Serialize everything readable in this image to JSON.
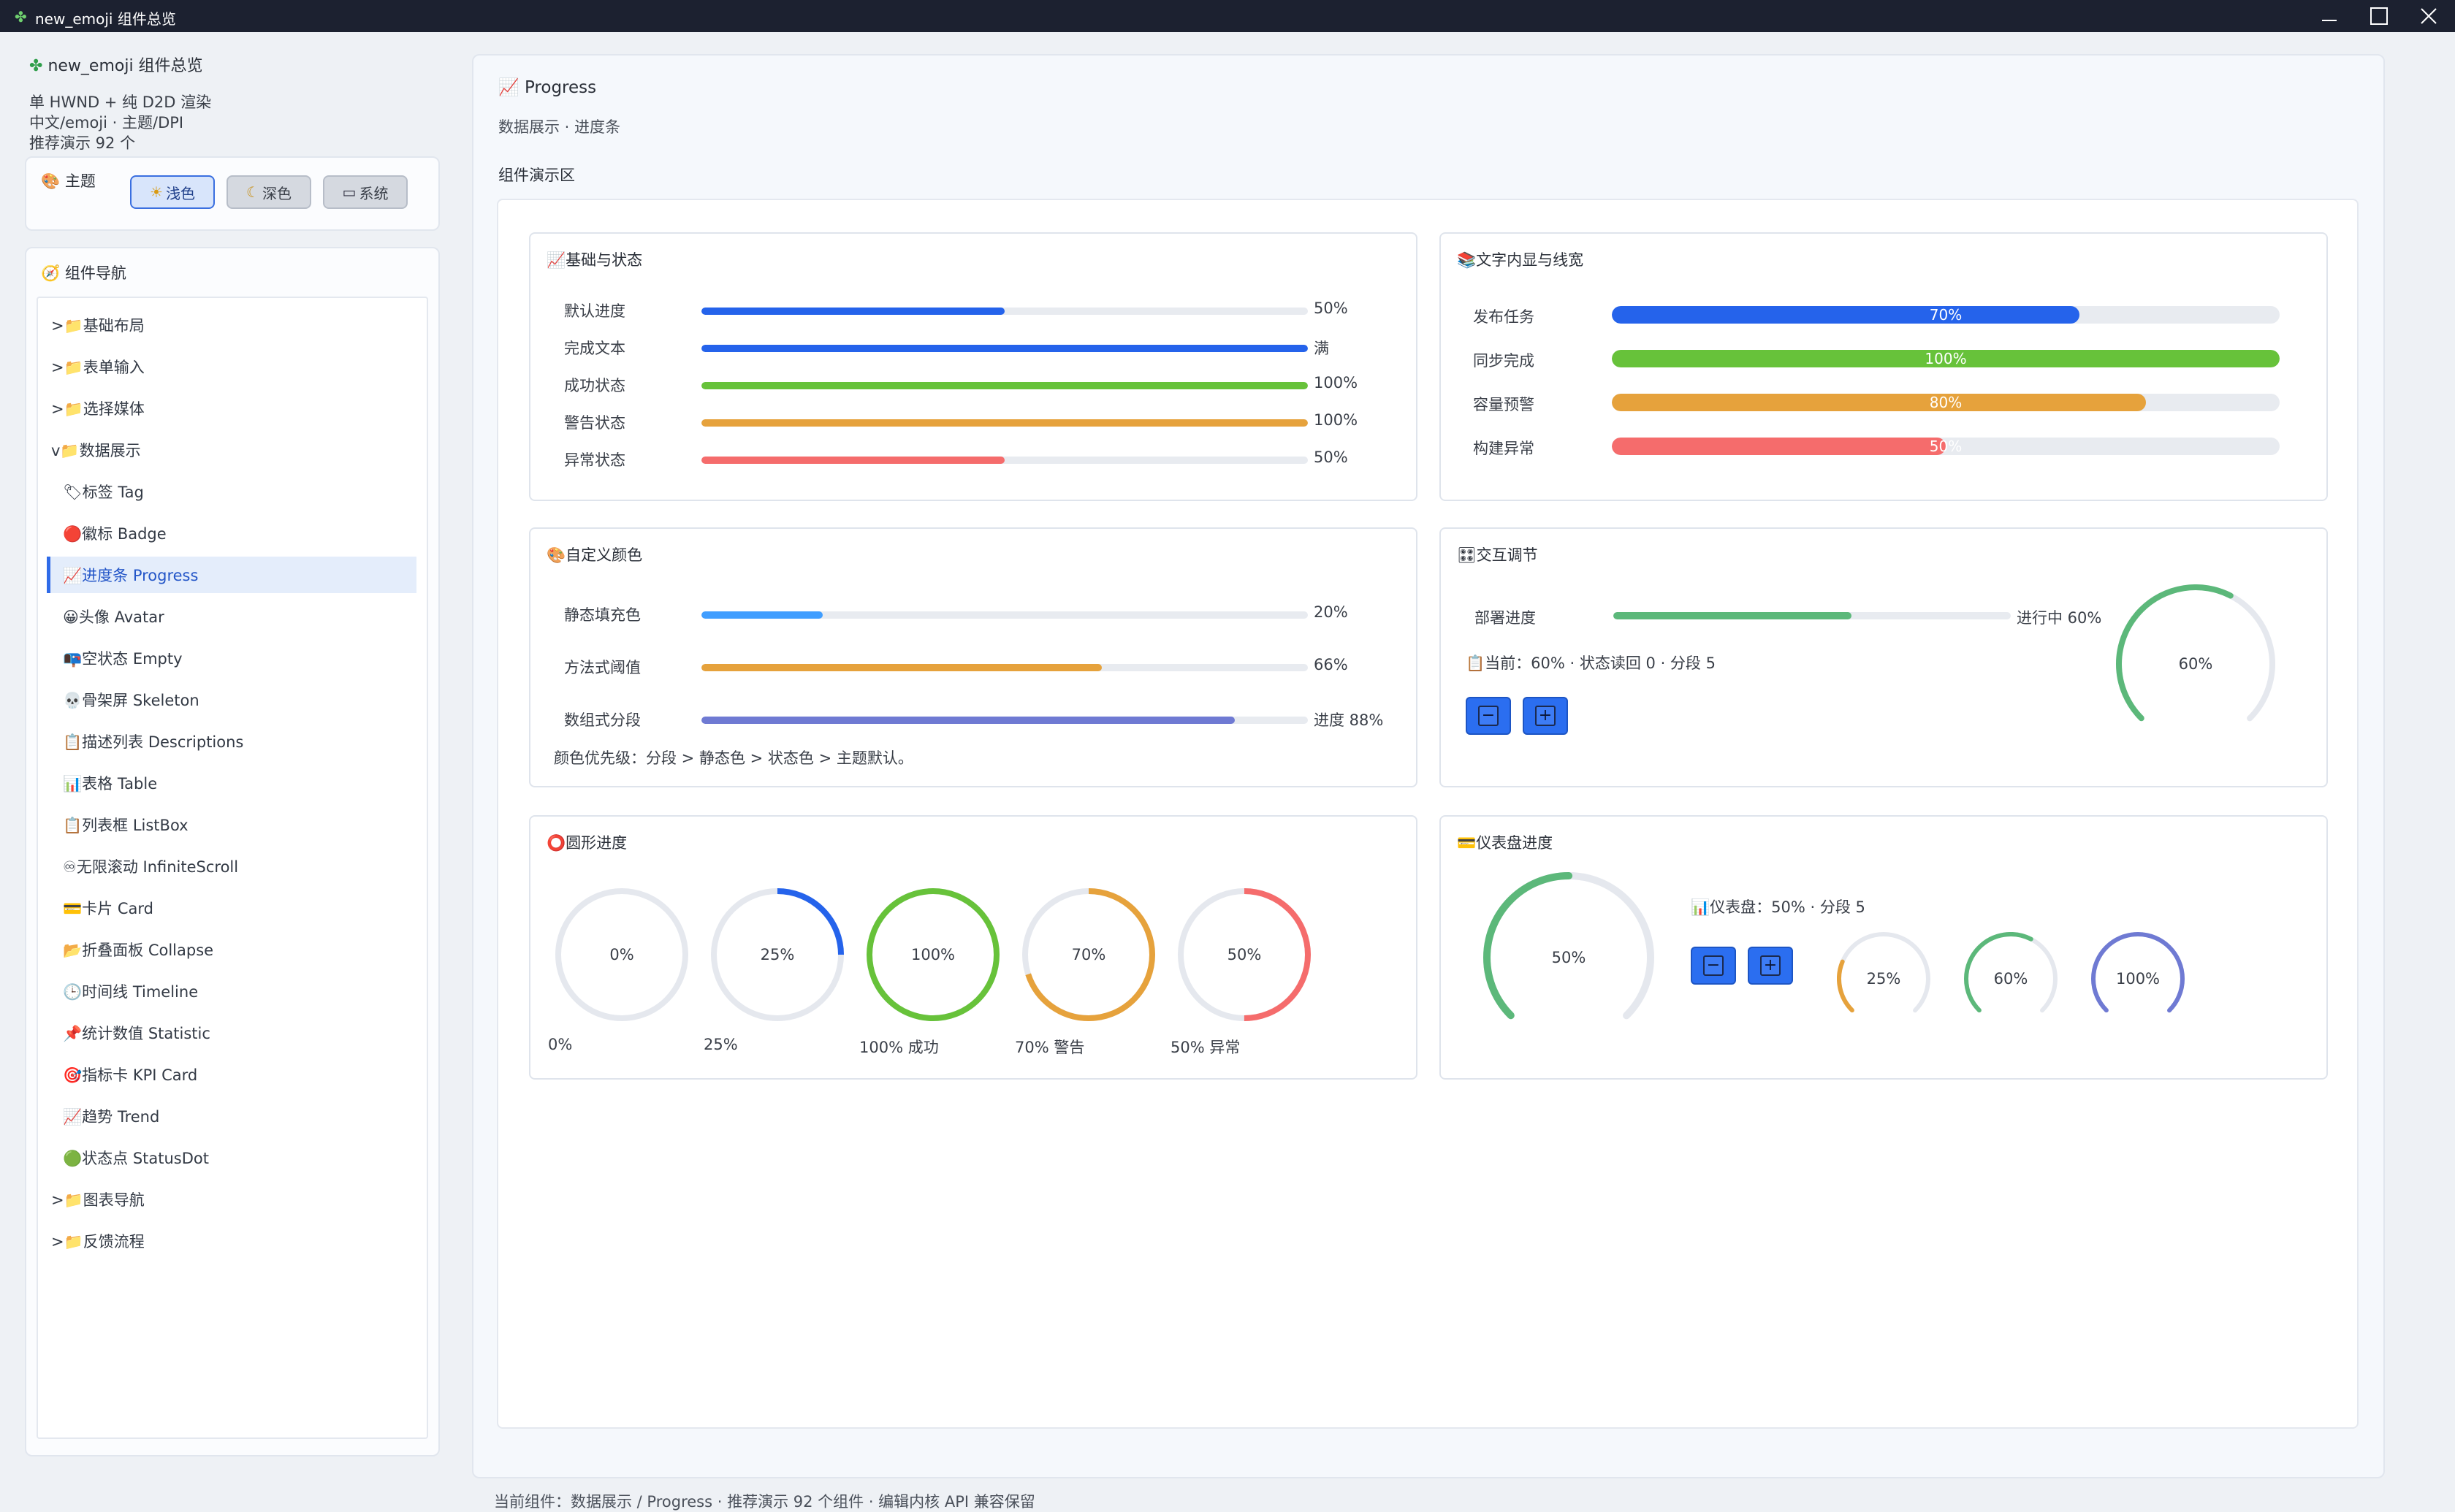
{
  "window": {
    "title": "new_emoji 组件总览"
  },
  "sidebar": {
    "app_name": "new_emoji 组件总览",
    "info_lines": [
      "单 HWND + 纯 D2D 渲染",
      "中文/emoji · 主题/DPI",
      "推荐演示 92 个"
    ],
    "theme": {
      "title": "主题",
      "buttons": [
        {
          "label": "浅色",
          "icon": "☀",
          "active": true
        },
        {
          "label": "深色",
          "icon": "☾",
          "active": false
        },
        {
          "label": "系统",
          "icon": "▭",
          "active": false
        }
      ]
    },
    "nav": {
      "title": "组件导航",
      "items": [
        {
          "label": ">📁基础布局"
        },
        {
          "label": ">📁表单输入"
        },
        {
          "label": ">📁选择媒体"
        },
        {
          "label": "v📁数据展示"
        },
        {
          "label": "🏷标签 Tag"
        },
        {
          "label": "🔴徽标 Badge"
        },
        {
          "label": "📈进度条 Progress"
        },
        {
          "label": "😀头像 Avatar"
        },
        {
          "label": "📭空状态 Empty"
        },
        {
          "label": "💀骨架屏 Skeleton"
        },
        {
          "label": "📋描述列表 Descriptions"
        },
        {
          "label": "📊表格 Table"
        },
        {
          "label": "📋列表框 ListBox"
        },
        {
          "label": "♾无限滚动 InfiniteScroll"
        },
        {
          "label": "💳卡片 Card"
        },
        {
          "label": "📂折叠面板 Collapse"
        },
        {
          "label": "🕒时间线 Timeline"
        },
        {
          "label": "📌统计数值 Statistic"
        },
        {
          "label": "🎯指标卡 KPI Card"
        },
        {
          "label": "📈趋势 Trend"
        },
        {
          "label": "🟢状态点 StatusDot"
        },
        {
          "label": ">📁图表导航"
        },
        {
          "label": ">📁反馈流程"
        }
      ]
    }
  },
  "main": {
    "title": "Progress",
    "subtitle": "数据展示 · 进度条",
    "demo_label": "组件演示区",
    "basic": {
      "title": "基础与状态",
      "rows": [
        {
          "label": "默认进度",
          "value": 0.5,
          "text": "50%",
          "color": "#2563eb"
        },
        {
          "label": "完成文本",
          "value": 1.0,
          "text": "满",
          "color": "#2563eb"
        },
        {
          "label": "成功状态",
          "value": 1.0,
          "text": "100%",
          "color": "#67c23a"
        },
        {
          "label": "警告状态",
          "value": 1.0,
          "text": "100%",
          "color": "#e6a23c"
        },
        {
          "label": "异常状态",
          "value": 0.5,
          "text": "50%",
          "color": "#f56c6c"
        }
      ]
    },
    "inner": {
      "title": "文字内显与线宽",
      "rows": [
        {
          "label": "发布任务",
          "value": 0.7,
          "text": "70%",
          "color": "#2563eb"
        },
        {
          "label": "同步完成",
          "value": 1.0,
          "text": "100%",
          "color": "#67c23a"
        },
        {
          "label": "容量预警",
          "value": 0.8,
          "text": "80%",
          "color": "#e6a23c"
        },
        {
          "label": "构建异常",
          "value": 0.5,
          "text": "50%",
          "color": "#f56c6c"
        }
      ]
    },
    "custom": {
      "title": "自定义颜色",
      "rows": [
        {
          "label": "静态填充色",
          "value": 0.2,
          "text": "20%",
          "color": "#409eff"
        },
        {
          "label": "方法式阈值",
          "value": 0.66,
          "text": "66%",
          "color": "#e6a23c"
        },
        {
          "label": "数组式分段",
          "value": 0.88,
          "text": "进度 88%",
          "color": "#6f7ad3"
        }
      ],
      "note": "颜色优先级：分段 > 静态色 > 状态色 > 主题默认。"
    },
    "interactive": {
      "title": "交互调节",
      "label": "部署进度",
      "value": 0.6,
      "text": "进行中 60%",
      "color": "#5cb87a",
      "status": "当前：60% · 状态读回 0 · 分段 5",
      "ring_text": "60%",
      "minus": "−",
      "plus": "+"
    },
    "circles": {
      "title": "圆形进度",
      "items": [
        {
          "value": 0.0,
          "text": "0%",
          "caption": "0%",
          "color": "#2563eb"
        },
        {
          "value": 0.25,
          "text": "25%",
          "caption": "25%",
          "color": "#2563eb"
        },
        {
          "value": 1.0,
          "text": "100%",
          "caption": "100% 成功",
          "color": "#67c23a"
        },
        {
          "value": 0.7,
          "text": "70%",
          "caption": "70% 警告",
          "color": "#e6a23c"
        },
        {
          "value": 0.5,
          "text": "50%",
          "caption": "50% 异常",
          "color": "#f56c6c"
        }
      ]
    },
    "dashboard": {
      "title": "仪表盘进度",
      "main": {
        "value": 0.5,
        "text": "50%",
        "color": "#5cb87a"
      },
      "status": "仪表盘：50% · 分段 5",
      "minus": "−",
      "plus": "+",
      "small": [
        {
          "value": 0.25,
          "text": "25%",
          "color": "#e6a23c"
        },
        {
          "value": 0.6,
          "text": "60%",
          "color": "#5cb87a"
        },
        {
          "value": 1.0,
          "text": "100%",
          "color": "#6f7ad3"
        }
      ]
    }
  },
  "status_bar": "当前组件：数据展示 / Progress · 推荐演示 92 个组件 · 编辑内核 API 兼容保留"
}
